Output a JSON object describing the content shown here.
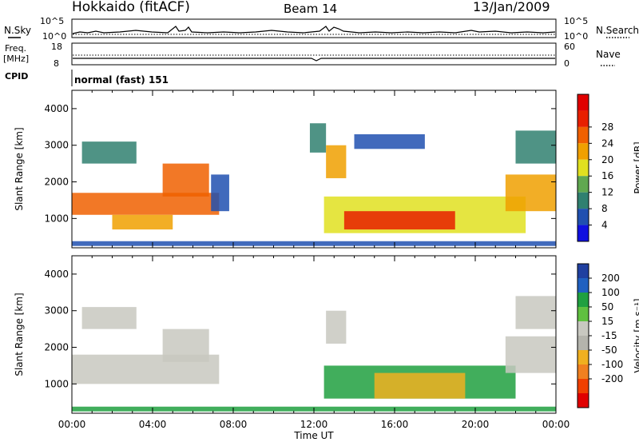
{
  "header": {
    "station": "Hokkaido (fitACF)",
    "beam": "Beam 14",
    "date": "13/Jan/2009"
  },
  "noise_panel": {
    "left_label": "N.Sky",
    "right_label": "N.Search",
    "left_ticks": [
      "10^5",
      "10^0"
    ],
    "right_ticks": [
      "10^5",
      "10^0"
    ]
  },
  "freq_panel": {
    "left_label_line1": "Freq.",
    "left_label_line2": "[MHz]",
    "right_label": "Nave",
    "left_ticks": [
      "18",
      "8"
    ],
    "right_ticks": [
      "60",
      "0"
    ]
  },
  "cpid": {
    "label": "CPID",
    "value": "normal (fast) 151"
  },
  "colors": {
    "power_scale": [
      "#1010e0",
      "#2050b0",
      "#308070",
      "#60a850",
      "#e0e020",
      "#f0a000",
      "#f06000",
      "#e82000",
      "#e00000"
    ],
    "velocity_scale": [
      "#2040a0",
      "#2060c0",
      "#20a040",
      "#60c040",
      "#c8c8c0",
      "#b4b4ac",
      "#f0b020",
      "#f08020",
      "#f04000",
      "#e00000"
    ]
  },
  "chart_data": [
    {
      "type": "heatmap",
      "name": "power",
      "x_ticks": [
        "00:00",
        "04:00",
        "08:00",
        "12:00",
        "16:00",
        "20:00",
        "00:00"
      ],
      "xlabel": "Time UT",
      "ylabel": "Slant Range [km]",
      "y_ticks": [
        "1000",
        "2000",
        "3000",
        "4000"
      ],
      "ylim": [
        200,
        4500
      ],
      "colorbar_label": "Power [dB]",
      "colorbar_ticks": [
        "4",
        "8",
        "12",
        "16",
        "20",
        "24",
        "28"
      ],
      "regions": [
        {
          "t0": 0.0,
          "t1": 7.3,
          "r0": 1100,
          "r1": 1700,
          "v": 22
        },
        {
          "t0": 0.5,
          "t1": 3.2,
          "r0": 2500,
          "r1": 3100,
          "v": 10
        },
        {
          "t0": 4.5,
          "t1": 6.8,
          "r0": 1600,
          "r1": 2500,
          "v": 24
        },
        {
          "t0": 2.0,
          "t1": 5.0,
          "r0": 700,
          "r1": 1100,
          "v": 20
        },
        {
          "t0": 6.9,
          "t1": 7.8,
          "r0": 1200,
          "r1": 2200,
          "v": 6
        },
        {
          "t0": 0.0,
          "t1": 24.0,
          "r0": 250,
          "r1": 380,
          "v": 6
        },
        {
          "t0": 11.8,
          "t1": 12.6,
          "r0": 2800,
          "r1": 3600,
          "v": 8
        },
        {
          "t0": 12.6,
          "t1": 13.6,
          "r0": 2100,
          "r1": 3000,
          "v": 18
        },
        {
          "t0": 14.0,
          "t1": 17.5,
          "r0": 2900,
          "r1": 3300,
          "v": 4
        },
        {
          "t0": 12.5,
          "t1": 22.5,
          "r0": 600,
          "r1": 1600,
          "v": 16
        },
        {
          "t0": 13.5,
          "t1": 19.0,
          "r0": 700,
          "r1": 1200,
          "v": 27
        },
        {
          "t0": 21.5,
          "t1": 24.0,
          "r0": 1200,
          "r1": 2200,
          "v": 20
        },
        {
          "t0": 22.0,
          "t1": 24.0,
          "r0": 2500,
          "r1": 3400,
          "v": 10
        }
      ]
    },
    {
      "type": "heatmap",
      "name": "velocity",
      "x_ticks": [
        "00:00",
        "04:00",
        "08:00",
        "12:00",
        "16:00",
        "20:00",
        "00:00"
      ],
      "xlabel": "Time UT",
      "ylabel": "Slant Range [km]",
      "y_ticks": [
        "1000",
        "2000",
        "3000",
        "4000"
      ],
      "ylim": [
        200,
        4500
      ],
      "colorbar_label": "Velocity [m s⁻¹]",
      "colorbar_ticks": [
        "200",
        "100",
        "50",
        "15",
        "-15",
        "-50",
        "-100",
        "-200"
      ],
      "regions": [
        {
          "t0": 0.0,
          "t1": 7.3,
          "r0": 1000,
          "r1": 1800,
          "v": 0
        },
        {
          "t0": 0.5,
          "t1": 3.2,
          "r0": 2500,
          "r1": 3100,
          "v": 0
        },
        {
          "t0": 4.5,
          "t1": 6.8,
          "r0": 1600,
          "r1": 2500,
          "v": 5
        },
        {
          "t0": 0.0,
          "t1": 24.0,
          "r0": 250,
          "r1": 380,
          "v": 40
        },
        {
          "t0": 12.6,
          "t1": 13.6,
          "r0": 2100,
          "r1": 3000,
          "v": 0
        },
        {
          "t0": 12.5,
          "t1": 22.0,
          "r0": 600,
          "r1": 1500,
          "v": 60
        },
        {
          "t0": 15.0,
          "t1": 19.5,
          "r0": 600,
          "r1": 1300,
          "v": -40
        },
        {
          "t0": 21.5,
          "t1": 24.0,
          "r0": 1300,
          "r1": 2300,
          "v": 0
        },
        {
          "t0": 22.0,
          "t1": 24.0,
          "r0": 2500,
          "r1": 3400,
          "v": 10
        }
      ]
    }
  ]
}
